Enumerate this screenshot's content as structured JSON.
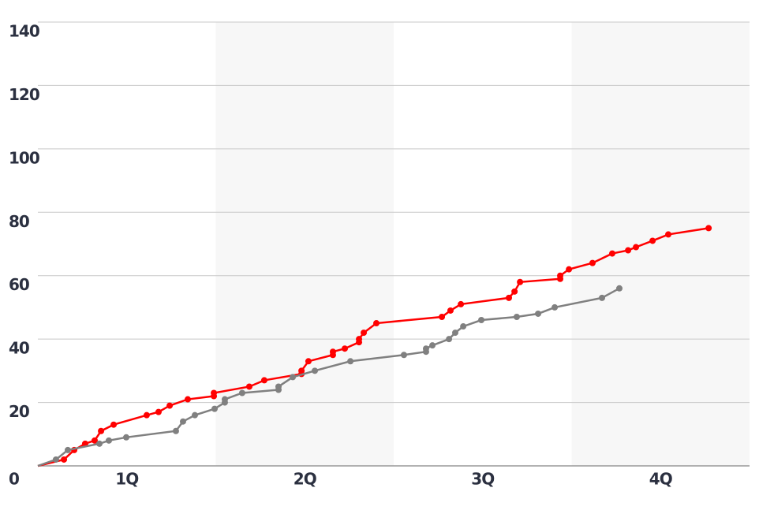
{
  "chart_data": {
    "type": "line",
    "xlim": [
      0,
      48
    ],
    "xticks": [
      {
        "value": 6,
        "label": "1Q"
      },
      {
        "value": 18,
        "label": "2Q"
      },
      {
        "value": 30,
        "label": "3Q"
      },
      {
        "value": 42,
        "label": "4Q"
      }
    ],
    "ylim": [
      0,
      140
    ],
    "yticks": [
      0,
      20,
      40,
      60,
      80,
      100,
      120,
      140
    ],
    "grid": true,
    "series": [
      {
        "color": "#ff0000",
        "x": [
          0,
          1.76,
          2.45,
          3.19,
          3.83,
          4.26,
          5.11,
          7.34,
          8.14,
          8.89,
          10.11,
          11.87,
          11.87,
          14.26,
          15.27,
          17.78,
          17.78,
          18.25,
          19.9,
          19.9,
          20.7,
          21.66,
          21.66,
          21.98,
          22.83,
          27.25,
          27.83,
          28.53,
          31.77,
          32.15,
          32.52,
          35.23,
          35.23,
          35.82,
          37.41,
          38.74,
          39.81,
          40.34,
          41.46,
          42.52,
          45.24
        ],
        "values": [
          0,
          2,
          5,
          7,
          8,
          11,
          13,
          16,
          17,
          19,
          21,
          22,
          23,
          25,
          27,
          29,
          30,
          33,
          35,
          36,
          37,
          39,
          40,
          42,
          45,
          47,
          49,
          51,
          53,
          55,
          58,
          59,
          60,
          62,
          64,
          67,
          68,
          69,
          71,
          73,
          75
        ]
      },
      {
        "color": "#808080",
        "x": [
          0,
          1.22,
          2.02,
          4.15,
          4.79,
          5.96,
          9.31,
          9.79,
          10.59,
          11.92,
          12.61,
          12.61,
          13.78,
          16.23,
          16.23,
          17.19,
          18.68,
          21.08,
          24.69,
          26.18,
          26.18,
          26.61,
          27.73,
          28.15,
          28.69,
          29.91,
          32.3,
          33.74,
          34.86,
          38.05,
          39.22
        ],
        "values": [
          0,
          2,
          5,
          7,
          8,
          9,
          11,
          14,
          16,
          18,
          20,
          21,
          23,
          24,
          25,
          28,
          30,
          33,
          35,
          36,
          37,
          38,
          40,
          42,
          44,
          46,
          47,
          48,
          50,
          53,
          56
        ]
      }
    ]
  }
}
